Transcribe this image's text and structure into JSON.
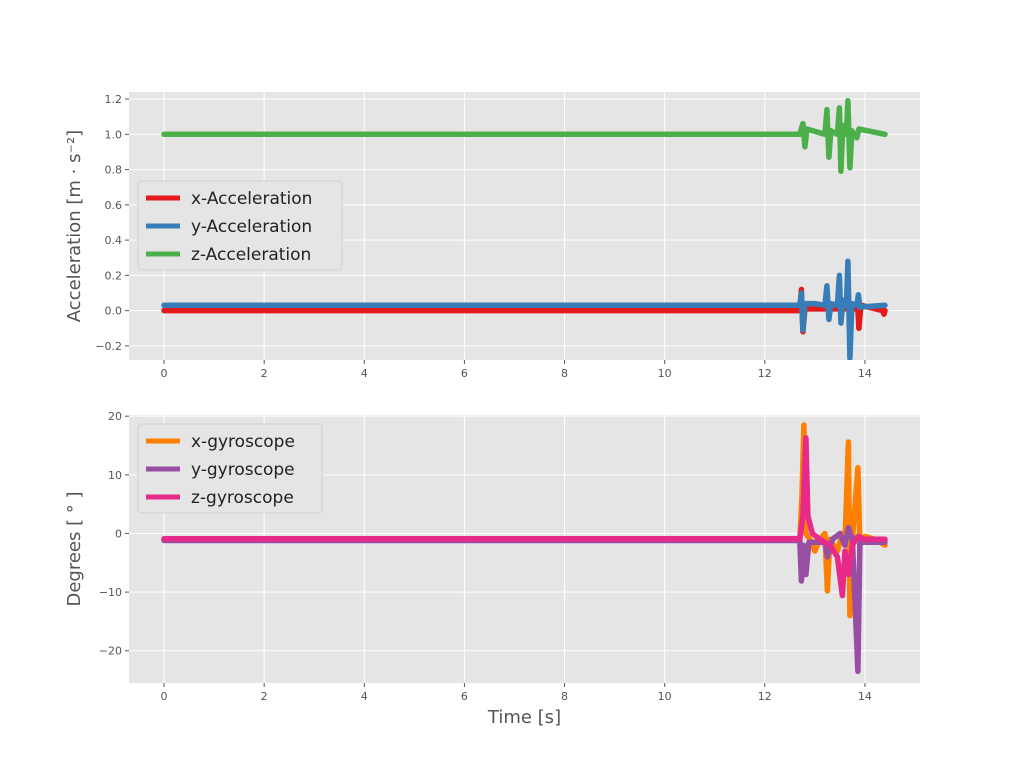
{
  "chart_data": [
    {
      "type": "line",
      "title": "",
      "xlabel": "",
      "ylabel": "Acceleration [m · s⁻²]",
      "xlim": [
        -0.7,
        15.1
      ],
      "ylim": [
        -0.28,
        1.24
      ],
      "xticks": [
        0,
        2,
        4,
        6,
        8,
        10,
        12,
        14
      ],
      "yticks": [
        -0.2,
        0.0,
        0.2,
        0.4,
        0.6,
        0.8,
        1.0,
        1.2
      ],
      "ytick_labels": [
        "−0.2",
        "0.0",
        "0.2",
        "0.4",
        "0.6",
        "0.8",
        "1.0",
        "1.2"
      ],
      "grid": true,
      "legend": "center-left",
      "series": [
        {
          "name": "x-Acceleration",
          "color": "#e41a1c",
          "points": [
            [
              0,
              0.0
            ],
            [
              12.7,
              0.0
            ],
            [
              12.73,
              0.12
            ],
            [
              12.76,
              -0.12
            ],
            [
              12.8,
              0.01
            ],
            [
              13.2,
              0.01
            ],
            [
              13.86,
              0.01
            ],
            [
              13.88,
              -0.1
            ],
            [
              13.92,
              0.03
            ],
            [
              14.35,
              0.0
            ],
            [
              14.38,
              -0.02
            ],
            [
              14.4,
              0.0
            ]
          ]
        },
        {
          "name": "y-Acceleration",
          "color": "#377eb8",
          "points": [
            [
              0,
              0.03
            ],
            [
              12.7,
              0.03
            ],
            [
              12.73,
              0.1
            ],
            [
              12.76,
              -0.11
            ],
            [
              12.8,
              0.04
            ],
            [
              13.0,
              0.04
            ],
            [
              13.2,
              0.03
            ],
            [
              13.24,
              0.14
            ],
            [
              13.28,
              -0.05
            ],
            [
              13.32,
              0.04
            ],
            [
              13.45,
              0.03
            ],
            [
              13.49,
              0.2
            ],
            [
              13.52,
              -0.07
            ],
            [
              13.56,
              0.06
            ],
            [
              13.63,
              0.03
            ],
            [
              13.66,
              0.28
            ],
            [
              13.7,
              -0.27
            ],
            [
              13.74,
              0.04
            ],
            [
              13.84,
              0.03
            ],
            [
              13.87,
              0.09
            ],
            [
              13.9,
              0.02
            ],
            [
              14.4,
              0.03
            ]
          ]
        },
        {
          "name": "z-Acceleration",
          "color": "#4daf4a",
          "points": [
            [
              0,
              1.0
            ],
            [
              12.7,
              1.0
            ],
            [
              12.76,
              1.06
            ],
            [
              12.8,
              0.93
            ],
            [
              12.84,
              1.03
            ],
            [
              13.2,
              1.0
            ],
            [
              13.24,
              1.14
            ],
            [
              13.28,
              0.87
            ],
            [
              13.32,
              1.02
            ],
            [
              13.45,
              1.0
            ],
            [
              13.49,
              1.15
            ],
            [
              13.52,
              0.79
            ],
            [
              13.56,
              1.05
            ],
            [
              13.63,
              1.0
            ],
            [
              13.66,
              1.19
            ],
            [
              13.7,
              0.81
            ],
            [
              13.74,
              1.02
            ],
            [
              13.84,
              0.98
            ],
            [
              13.88,
              1.03
            ],
            [
              14.4,
              1.0
            ]
          ]
        }
      ]
    },
    {
      "type": "line",
      "title": "",
      "xlabel": "Time [s]",
      "ylabel": "Degrees [ ° ]",
      "xlim": [
        -0.7,
        15.1
      ],
      "ylim": [
        -25.5,
        20.2
      ],
      "xticks": [
        0,
        2,
        4,
        6,
        8,
        10,
        12,
        14
      ],
      "yticks": [
        -20,
        -10,
        0,
        10,
        20
      ],
      "ytick_labels": [
        "−20",
        "−10",
        "0",
        "10",
        "20"
      ],
      "grid": true,
      "legend": "top-left",
      "series": [
        {
          "name": "x-gyroscope",
          "color": "#ff7f00",
          "points": [
            [
              0,
              -1.0
            ],
            [
              12.7,
              -1.0
            ],
            [
              12.74,
              6
            ],
            [
              12.78,
              18.5
            ],
            [
              12.82,
              0
            ],
            [
              12.9,
              -1
            ],
            [
              13.0,
              -3
            ],
            [
              13.1,
              -1
            ],
            [
              13.2,
              0
            ],
            [
              13.25,
              -9.8
            ],
            [
              13.3,
              -1
            ],
            [
              13.45,
              -3
            ],
            [
              13.55,
              0
            ],
            [
              13.6,
              -2
            ],
            [
              13.67,
              15.6
            ],
            [
              13.7,
              -14
            ],
            [
              13.76,
              0
            ],
            [
              13.86,
              11.2
            ],
            [
              13.9,
              -2
            ],
            [
              14.0,
              -0.5
            ],
            [
              14.2,
              -1
            ],
            [
              14.4,
              -2
            ]
          ]
        },
        {
          "name": "y-gyroscope",
          "color": "#984ea3",
          "points": [
            [
              0,
              -1.2
            ],
            [
              12.7,
              -1.2
            ],
            [
              12.73,
              -8.1
            ],
            [
              12.77,
              -2
            ],
            [
              12.82,
              -7
            ],
            [
              12.88,
              -1.5
            ],
            [
              13.2,
              -1.5
            ],
            [
              13.25,
              -4
            ],
            [
              13.35,
              -1
            ],
            [
              13.5,
              0
            ],
            [
              13.6,
              -2
            ],
            [
              13.67,
              1
            ],
            [
              13.75,
              -1
            ],
            [
              13.86,
              -23.5
            ],
            [
              13.9,
              -1.5
            ],
            [
              14.4,
              -1.5
            ]
          ]
        },
        {
          "name": "z-gyroscope",
          "color": "#e7298a",
          "points": [
            [
              0,
              -0.9
            ],
            [
              12.7,
              -0.9
            ],
            [
              12.76,
              3
            ],
            [
              12.82,
              16.3
            ],
            [
              12.86,
              3
            ],
            [
              12.95,
              0
            ],
            [
              13.1,
              -1
            ],
            [
              13.3,
              -2
            ],
            [
              13.45,
              -4
            ],
            [
              13.55,
              -10.6
            ],
            [
              13.6,
              -3
            ],
            [
              13.67,
              -7
            ],
            [
              13.75,
              -2
            ],
            [
              13.86,
              -0.5
            ],
            [
              14.0,
              -1
            ],
            [
              14.4,
              -1
            ]
          ]
        }
      ]
    }
  ]
}
